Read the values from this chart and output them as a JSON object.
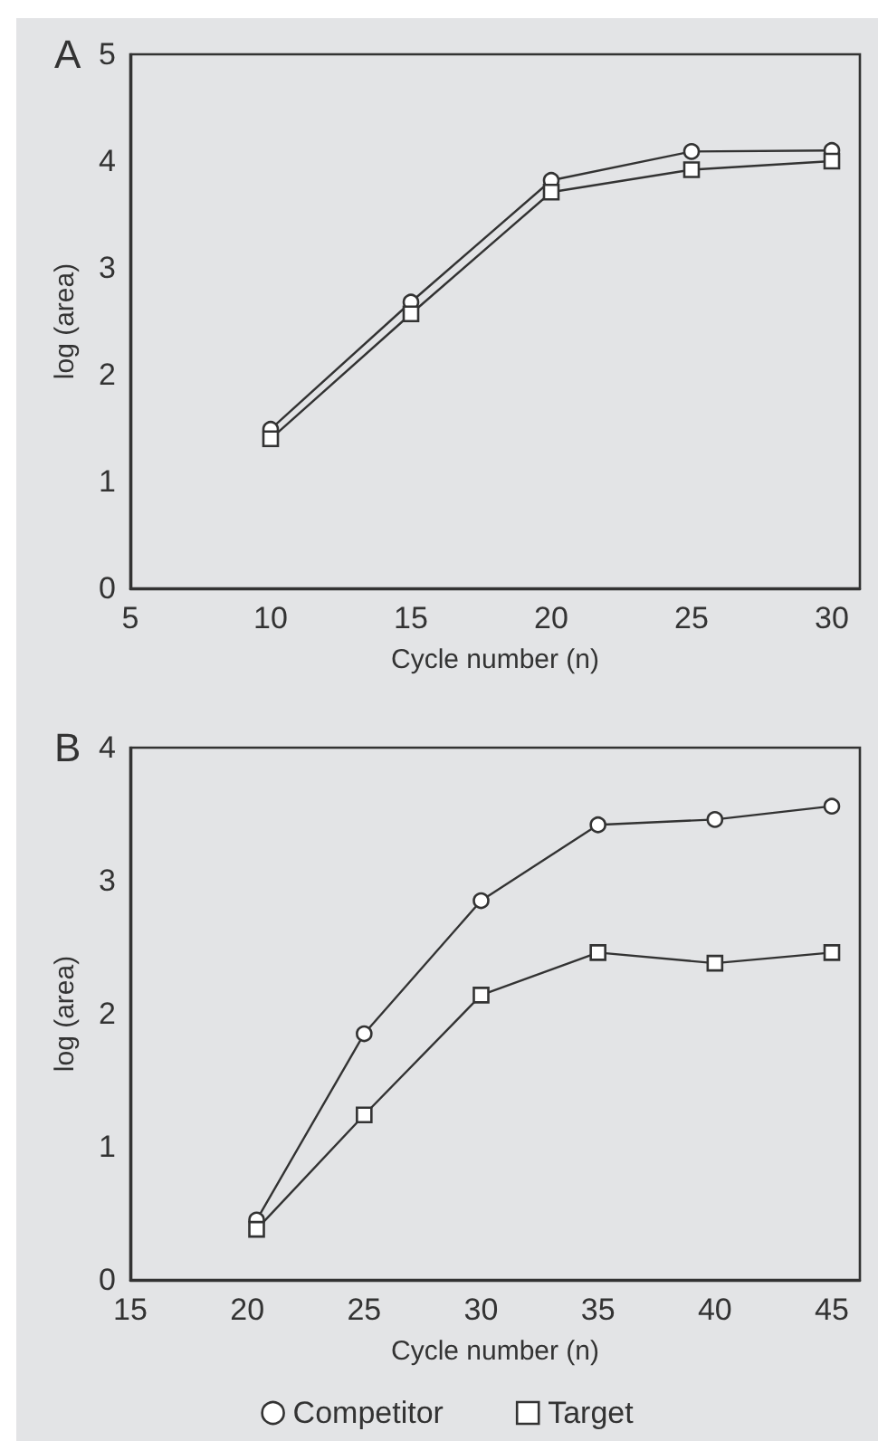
{
  "chart_data": [
    {
      "type": "line",
      "title": "A",
      "xlabel": "Cycle number (n)",
      "ylabel": "log (area)",
      "xlim": [
        5,
        31
      ],
      "xticks": [
        5,
        10,
        15,
        20,
        25,
        30
      ],
      "ylim": [
        0,
        5
      ],
      "yticks": [
        0,
        1,
        2,
        3,
        4,
        5
      ],
      "grid": false,
      "legend": false,
      "line_style": "solid",
      "series": [
        {
          "color": "#333333",
          "marker": "circle",
          "x": [
            10,
            15,
            20,
            25,
            30
          ],
          "values": [
            1.49,
            2.68,
            3.82,
            4.09,
            4.1
          ]
        },
        {
          "color": "#333333",
          "marker": "square",
          "x": [
            10,
            15,
            20,
            25,
            30
          ],
          "values": [
            1.4,
            2.57,
            3.71,
            3.92,
            4.0
          ]
        }
      ]
    },
    {
      "type": "line",
      "title": "B",
      "xlabel": "Cycle number (n)",
      "ylabel": "log (area)",
      "xlim": [
        15,
        46.2
      ],
      "xticks": [
        15,
        20,
        25,
        30,
        35,
        40,
        45
      ],
      "ylim": [
        0,
        4
      ],
      "yticks": [
        0,
        1,
        2,
        3,
        4
      ],
      "grid": false,
      "legend": "bottom",
      "line_style": "solid",
      "series": [
        {
          "name": "Competitor",
          "color": "#333333",
          "marker": "circle",
          "x": [
            20.4,
            25,
            30,
            35,
            40,
            45
          ],
          "values": [
            0.45,
            1.85,
            2.85,
            3.42,
            3.46,
            3.56
          ]
        },
        {
          "name": "Target",
          "color": "#333333",
          "marker": "square",
          "x": [
            20.4,
            25,
            30,
            35,
            40,
            45
          ],
          "values": [
            0.38,
            1.24,
            2.14,
            2.46,
            2.38,
            2.46
          ]
        }
      ]
    }
  ]
}
